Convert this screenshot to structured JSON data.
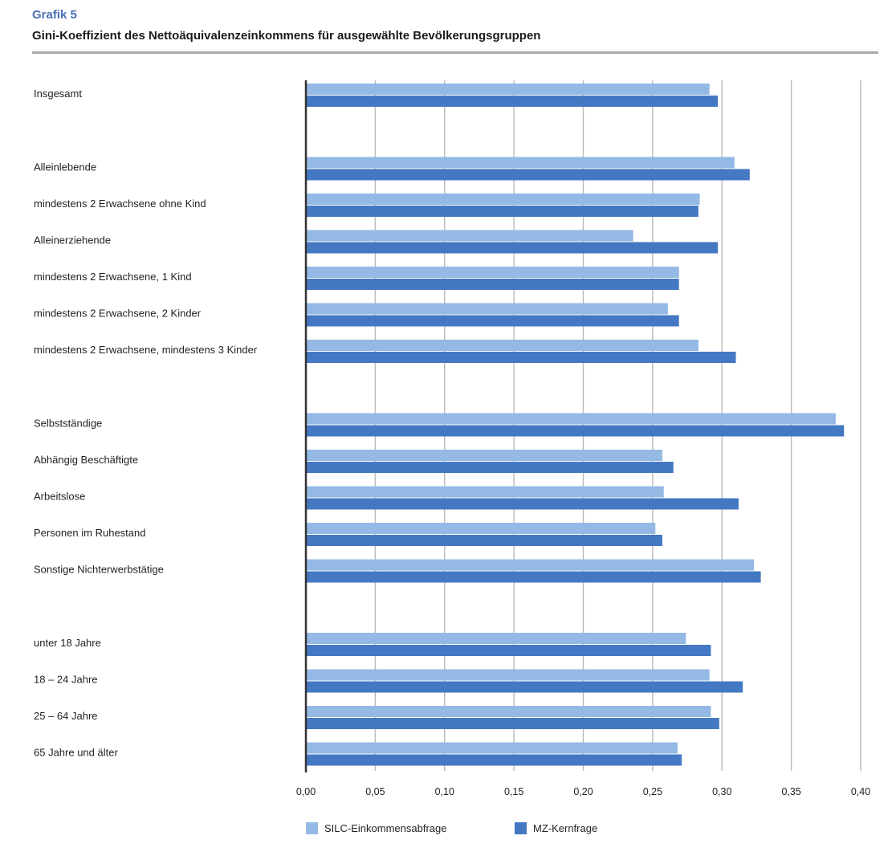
{
  "header": {
    "kicker": "Grafik 5",
    "title": "Gini-Koeffizient des Nettoäquivalenzeinkommens für ausgewählte Bevölkerungsgruppen"
  },
  "colors": {
    "silc": "#94b9e5",
    "mz": "#4478c2",
    "grid": "#b9b9b9",
    "axis": "#333333"
  },
  "chart_data": {
    "type": "bar",
    "orientation": "horizontal",
    "title": "Gini-Koeffizient des Nettoäquivalenzeinkommens für ausgewählte Bevölkerungsgruppen",
    "xlabel": "",
    "ylabel": "",
    "xlim": [
      0,
      0.4
    ],
    "grid": true,
    "legend_position": "bottom",
    "ticks": [
      "0,00",
      "0,05",
      "0,10",
      "0,15",
      "0,20",
      "0,25",
      "0,30",
      "0,35",
      "0,40"
    ],
    "groups": [
      [
        "Insgesamt"
      ],
      [
        "Alleinlebende",
        "mindestens 2 Erwachsene ohne Kind",
        "Alleinerziehende",
        "mindestens 2 Erwachsene, 1 Kind",
        "mindestens 2 Erwachsene, 2 Kinder",
        "mindestens 2 Erwachsene, mindestens 3 Kinder"
      ],
      [
        "Selbstständige",
        "Abhängig Beschäftigte",
        "Arbeitslose",
        "Personen im Ruhestand",
        "Sonstige Nichterwerbstätige"
      ],
      [
        "unter 18 Jahre",
        "18 – 24 Jahre",
        "25 – 64 Jahre",
        "65 Jahre und älter"
      ]
    ],
    "categories": [
      "Insgesamt",
      "Alleinlebende",
      "mindestens 2 Erwachsene ohne Kind",
      "Alleinerziehende",
      "mindestens 2 Erwachsene, 1 Kind",
      "mindestens 2 Erwachsene, 2 Kinder",
      "mindestens 2 Erwachsene, mindestens 3 Kinder",
      "Selbstständige",
      "Abhängig Beschäftigte",
      "Arbeitslose",
      "Personen im Ruhestand",
      "Sonstige Nichterwerbstätige",
      "unter 18 Jahre",
      "18 – 24 Jahre",
      "25 – 64 Jahre",
      "65 Jahre und älter"
    ],
    "series": [
      {
        "name": "SILC-Einkommensabfrage",
        "values": [
          0.291,
          0.309,
          0.284,
          0.236,
          0.269,
          0.261,
          0.283,
          0.382,
          0.257,
          0.258,
          0.252,
          0.323,
          0.274,
          0.291,
          0.292,
          0.268
        ]
      },
      {
        "name": "MZ-Kernfrage",
        "values": [
          0.297,
          0.32,
          0.283,
          0.297,
          0.269,
          0.269,
          0.31,
          0.388,
          0.265,
          0.312,
          0.257,
          0.328,
          0.292,
          0.315,
          0.298,
          0.271
        ]
      }
    ]
  }
}
